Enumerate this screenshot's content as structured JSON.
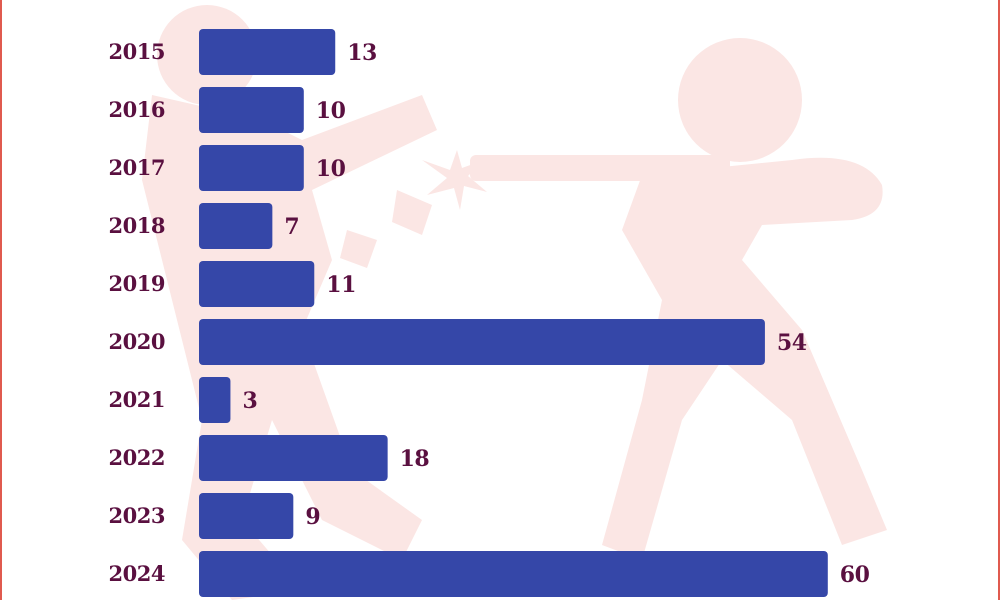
{
  "chart_data": {
    "type": "bar",
    "orientation": "horizontal",
    "categories": [
      "2015",
      "2016",
      "2017",
      "2018",
      "2019",
      "2020",
      "2021",
      "2022",
      "2023",
      "2024"
    ],
    "values": [
      13,
      10,
      10,
      7,
      11,
      54,
      3,
      18,
      9,
      60
    ],
    "title": "",
    "xlabel": "",
    "ylabel": "",
    "xlim": [
      0,
      60
    ],
    "grid": false,
    "legend": "none",
    "data_labels": true
  },
  "colors": {
    "bar": "#3547a8",
    "label_text": "#5a1040",
    "background_art": "#fbe6e4",
    "frame_border": "#e05a4f"
  },
  "background_icon": "shooter-silhouette-icon"
}
